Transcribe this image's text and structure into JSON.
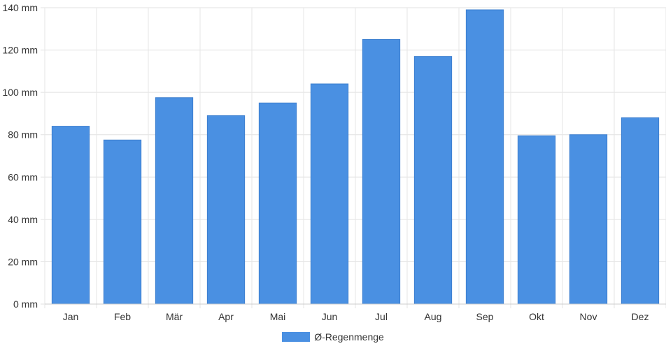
{
  "chart_data": {
    "type": "bar",
    "categories": [
      "Jan",
      "Feb",
      "Mär",
      "Apr",
      "Mai",
      "Jun",
      "Jul",
      "Aug",
      "Sep",
      "Okt",
      "Nov",
      "Dez"
    ],
    "series": [
      {
        "name": "Ø-Regenmenge",
        "values": [
          84,
          77.5,
          97.5,
          89,
          95,
          104,
          125,
          117,
          139,
          79.5,
          80,
          88
        ],
        "color": "#4a90e2"
      }
    ],
    "ylim": [
      0,
      140
    ],
    "yticks": [
      0,
      20,
      40,
      60,
      80,
      100,
      120,
      140
    ],
    "y_unit": "mm",
    "grid": true,
    "legend_position": "bottom"
  }
}
